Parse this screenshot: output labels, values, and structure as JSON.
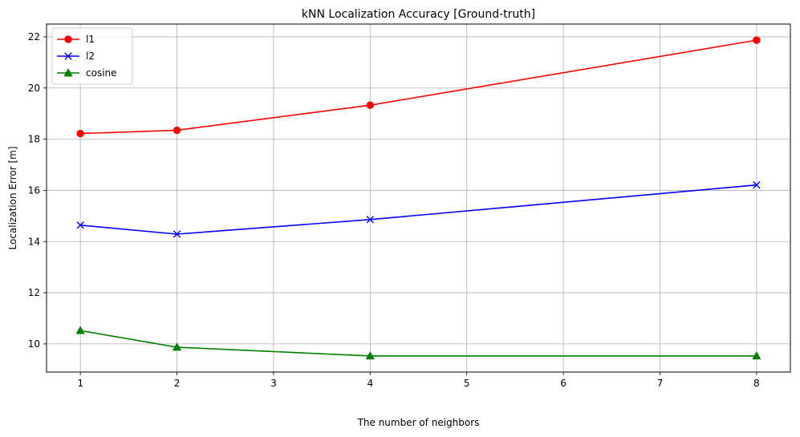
{
  "chart_data": {
    "type": "line",
    "title": "kNN Localization Accuracy [Ground-truth]",
    "xlabel": "The number of neighbors",
    "ylabel": "Localization Error [m]",
    "xlim": [
      0.65,
      8.35
    ],
    "ylim": [
      8.9,
      22.5
    ],
    "xticks": [
      1,
      2,
      3,
      4,
      5,
      6,
      7,
      8
    ],
    "yticks": [
      10,
      12,
      14,
      16,
      18,
      20,
      22
    ],
    "grid": true,
    "legend_position": "top-left",
    "series": [
      {
        "name": "l1",
        "color": "#ff0000",
        "marker": "circle",
        "x": [
          1,
          2,
          4,
          8
        ],
        "y": [
          18.22,
          18.35,
          19.33,
          21.87
        ]
      },
      {
        "name": "l2",
        "color": "#0000ff",
        "marker": "x",
        "x": [
          1,
          2,
          4,
          8
        ],
        "y": [
          14.64,
          14.29,
          14.86,
          16.21
        ]
      },
      {
        "name": "cosine",
        "color": "#008000",
        "marker": "triangle",
        "x": [
          1,
          2,
          4,
          8
        ],
        "y": [
          10.52,
          9.87,
          9.53,
          9.53
        ]
      }
    ]
  }
}
